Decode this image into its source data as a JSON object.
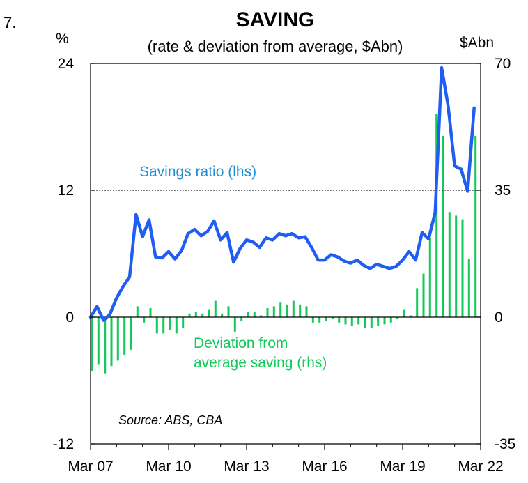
{
  "figure_number": "7.",
  "chart_data": {
    "type": "bar+line",
    "title": "SAVING",
    "subtitle": "(rate & deviation from average, $Abn)",
    "left_axis": {
      "unit": "%",
      "ylim": [
        -12,
        24
      ],
      "ticks": [
        "24",
        "12",
        "0",
        "-12"
      ],
      "tick_values": [
        24,
        12,
        0,
        -12
      ]
    },
    "right_axis": {
      "unit": "$Abn",
      "ylim": [
        -35,
        70
      ],
      "ticks": [
        "70",
        "35",
        "0",
        "-35"
      ],
      "tick_values": [
        70,
        35,
        0,
        -35
      ]
    },
    "x_start": 2007.0,
    "x_end": 2022.0,
    "x_tick_labels": [
      "Mar 07",
      "Mar 10",
      "Mar 13",
      "Mar 16",
      "Mar 19",
      "Mar 22"
    ],
    "x_tick_values": [
      2007.0,
      2010.0,
      2013.0,
      2016.0,
      2019.0,
      2022.0
    ],
    "reference_line": {
      "axis": "left",
      "value": 12
    },
    "line_series": {
      "name": "Savings ratio (lhs)",
      "color": "#1f5ef0",
      "x": [
        2007.0,
        2007.25,
        2007.5,
        2007.75,
        2008.0,
        2008.25,
        2008.5,
        2008.75,
        2009.0,
        2009.25,
        2009.5,
        2009.75,
        2010.0,
        2010.25,
        2010.5,
        2010.75,
        2011.0,
        2011.25,
        2011.5,
        2011.75,
        2012.0,
        2012.25,
        2012.5,
        2012.75,
        2013.0,
        2013.25,
        2013.5,
        2013.75,
        2014.0,
        2014.25,
        2014.5,
        2014.75,
        2015.0,
        2015.25,
        2015.5,
        2015.75,
        2016.0,
        2016.25,
        2016.5,
        2016.75,
        2017.0,
        2017.25,
        2017.5,
        2017.75,
        2018.0,
        2018.25,
        2018.5,
        2018.75,
        2019.0,
        2019.25,
        2019.5,
        2019.75,
        2020.0,
        2020.25,
        2020.5,
        2020.75,
        2021.0,
        2021.25,
        2021.5,
        2021.75
      ],
      "values": [
        0.0,
        1.0,
        -0.3,
        0.3,
        1.8,
        2.9,
        3.8,
        9.7,
        7.6,
        9.2,
        5.7,
        5.6,
        6.2,
        5.5,
        6.3,
        7.9,
        8.3,
        7.7,
        8.1,
        9.1,
        7.3,
        8.0,
        5.2,
        6.5,
        7.3,
        7.1,
        6.6,
        7.5,
        7.3,
        7.9,
        7.7,
        7.9,
        7.5,
        7.6,
        6.6,
        5.4,
        5.4,
        5.9,
        5.7,
        5.3,
        5.1,
        5.4,
        4.9,
        4.6,
        5.0,
        4.8,
        4.6,
        4.8,
        5.4,
        6.2,
        5.4,
        8.0,
        7.4,
        9.9,
        23.6,
        20.0,
        14.3,
        14.0,
        11.9,
        19.8
      ]
    },
    "bar_series": {
      "name": "Deviation from average saving (rhs)",
      "color": "#13c95a",
      "x": [
        2007.0,
        2007.25,
        2007.5,
        2007.75,
        2008.0,
        2008.25,
        2008.5,
        2008.75,
        2009.0,
        2009.25,
        2009.5,
        2009.75,
        2010.0,
        2010.25,
        2010.5,
        2010.75,
        2011.0,
        2011.25,
        2011.5,
        2011.75,
        2012.0,
        2012.25,
        2012.5,
        2012.75,
        2013.0,
        2013.25,
        2013.5,
        2013.75,
        2014.0,
        2014.25,
        2014.5,
        2014.75,
        2015.0,
        2015.25,
        2015.5,
        2015.75,
        2016.0,
        2016.25,
        2016.5,
        2016.75,
        2017.0,
        2017.25,
        2017.5,
        2017.75,
        2018.0,
        2018.25,
        2018.5,
        2018.75,
        2019.0,
        2019.25,
        2019.5,
        2019.75,
        2020.0,
        2020.25,
        2020.5,
        2020.75,
        2021.0,
        2021.25,
        2021.5,
        2021.75
      ],
      "values": [
        -15.0,
        -13.0,
        -15.5,
        -13.5,
        -12.0,
        -10.5,
        -9.0,
        3.0,
        -1.5,
        2.5,
        -4.5,
        -4.5,
        -3.5,
        -4.5,
        -3.0,
        1.0,
        1.5,
        1.0,
        2.0,
        4.5,
        1.0,
        3.0,
        -4.0,
        -1.0,
        1.5,
        1.5,
        0.5,
        2.5,
        3.0,
        4.0,
        3.5,
        4.5,
        3.5,
        3.0,
        -1.5,
        -1.5,
        -1.0,
        -0.5,
        -1.5,
        -2.0,
        -2.5,
        -2.0,
        -3.0,
        -3.0,
        -2.5,
        -2.0,
        -1.5,
        -0.5,
        2.0,
        0.5,
        8.0,
        12.0,
        22.0,
        56.0,
        50.0,
        29.0,
        28.0,
        27.0,
        16.0,
        50.0
      ]
    },
    "annotations": {
      "savings_label": "Savings ratio (lhs)",
      "deviation_line1": "Deviation from",
      "deviation_line2": "average saving (rhs)",
      "source": "Source: ABS, CBA"
    }
  }
}
